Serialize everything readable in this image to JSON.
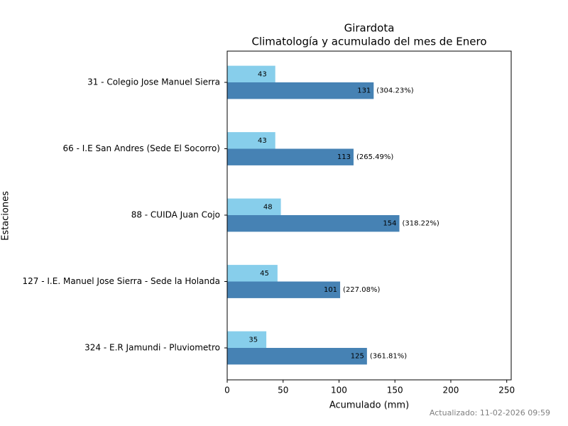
{
  "chart_data": {
    "type": "barh",
    "title": "Girardota",
    "subtitle": "Climatología y acumulado del mes de Enero",
    "x_label": "Acumulado (mm)",
    "y_label": "Estaciones",
    "footer": "Actualizado: 11-02-2026 09:59",
    "categories": [
      "31 - Colegio Jose Manuel Sierra",
      "66 - I.E San Andres (Sede El Socorro)",
      "88 - CUIDA Juan Cojo",
      "127 - I.E. Manuel Jose Sierra - Sede la Holanda",
      "324 - E.R Jamundi - Pluviometro"
    ],
    "series": [
      {
        "color": "#87ceeb",
        "values": [
          43,
          43,
          48,
          45,
          35
        ]
      },
      {
        "color": "#4682b4",
        "values": [
          131,
          113,
          154,
          101,
          125
        ],
        "percent_labels": [
          {
            "value": 304.23,
            "label": "(304.23%)"
          },
          {
            "value": 265.49,
            "label": "(265.49%)"
          },
          {
            "value": 318.22,
            "label": "(318.22%)"
          },
          {
            "value": 227.08,
            "label": "(227.08%)"
          },
          {
            "value": 361.81,
            "label": "(361.81%)"
          }
        ]
      }
    ],
    "xlim": [
      0,
      254
    ],
    "xticks": [
      0,
      50,
      100,
      150,
      200,
      250
    ]
  }
}
